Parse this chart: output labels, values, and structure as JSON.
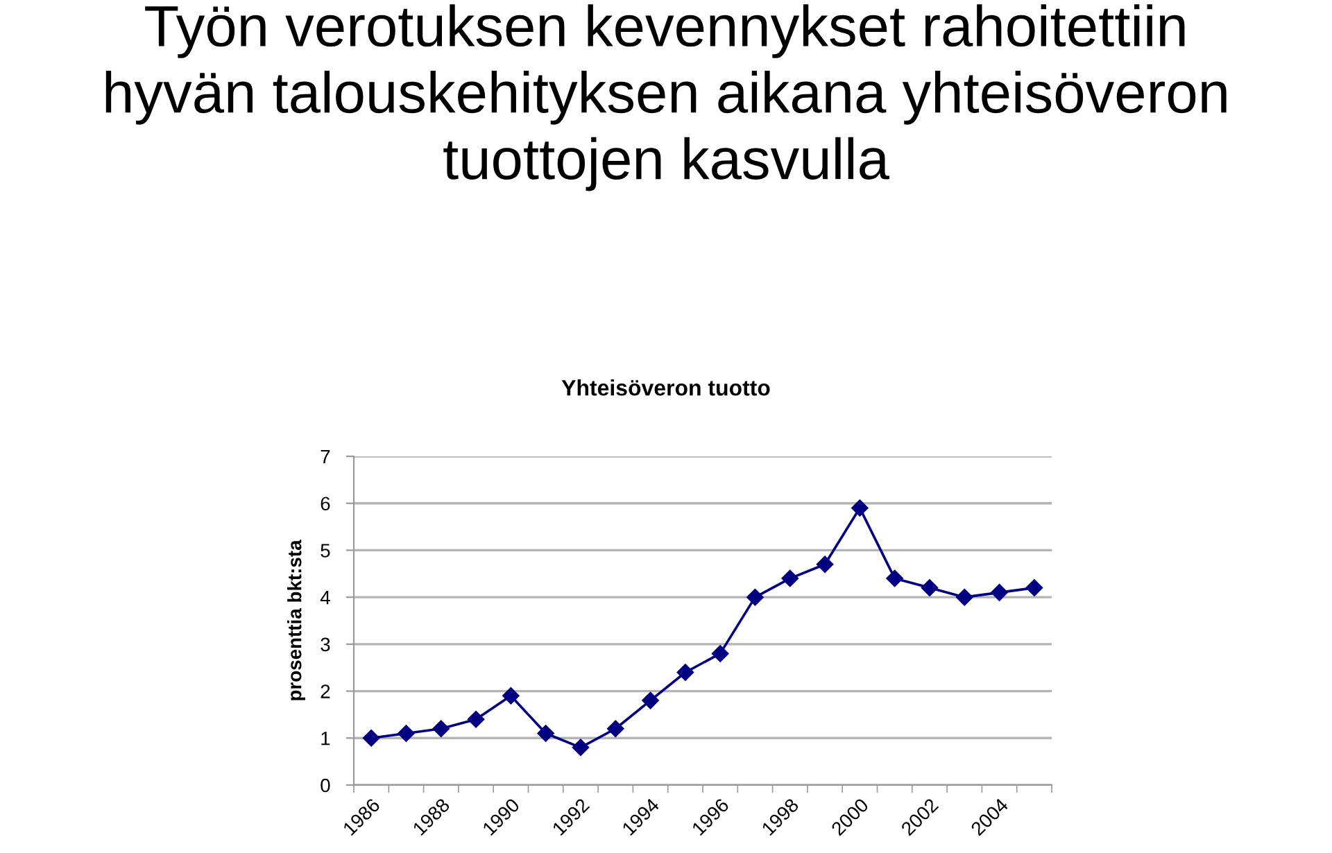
{
  "chart_data": {
    "type": "line",
    "title": "Työn verotuksen kevennykset rahoitettiin\nhyvän talouskehityksen aikana yhteisöveron\ntuottojen kasvulla",
    "subtitle": "Yhteisöveron tuotto",
    "ylabel": "prosenttia bkt:sta",
    "categories": [
      "1986",
      null,
      "1988",
      null,
      "1990",
      null,
      "1992",
      null,
      "1994",
      null,
      "1996",
      null,
      "1998",
      null,
      "2000",
      null,
      "2002",
      null,
      "2004",
      null
    ],
    "series": [
      {
        "color": "#000080",
        "values": [
          1.0,
          1.1,
          1.2,
          1.4,
          1.9,
          1.1,
          0.8,
          1.2,
          1.8,
          2.4,
          2.8,
          4.0,
          4.4,
          4.7,
          5.9,
          4.4,
          4.2,
          4.0,
          4.1,
          4.2
        ]
      }
    ],
    "ylim": [
      0,
      7
    ],
    "yticks": [
      0,
      1,
      2,
      3,
      4,
      5,
      6,
      7
    ],
    "grid": "y",
    "marker": "diamond",
    "line_style": "solid"
  }
}
